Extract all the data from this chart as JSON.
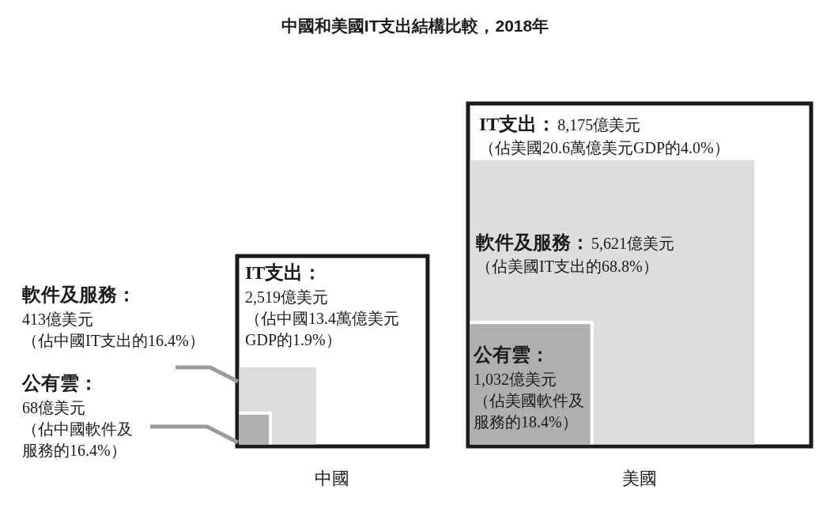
{
  "chart_data": {
    "type": "other",
    "title": "中國和美國IT支出結構比較，2018年",
    "categories": [
      "中國",
      "美國"
    ],
    "series": [
      {
        "name": "IT支出：",
        "color": "#ffffff",
        "values": [
          2519,
          8175
        ],
        "value_labels": [
          "2,519億美元",
          "8,175億美元"
        ]
      },
      {
        "name": "軟件及服務：",
        "color": "#dcdddf",
        "values": [
          413,
          5621
        ],
        "value_labels": [
          "413億美元",
          "5,621億美元"
        ]
      },
      {
        "name": "公有雲：",
        "color": "#aeafb1",
        "values": [
          68,
          1032
        ],
        "value_labels": [
          "68億美元",
          "1,032億美元"
        ]
      }
    ],
    "annotations": [
      "（佔中國13.4萬億美元GDP的1.9%）",
      "（佔中國IT支出的16.4%）",
      "（佔中國軟件及服務的16.4%）",
      "（佔美國20.6萬億美元GDP的4.0%）",
      "（佔美國IT支出的68.8%）",
      "（佔美國軟件及服務的18.4%）"
    ]
  }
}
